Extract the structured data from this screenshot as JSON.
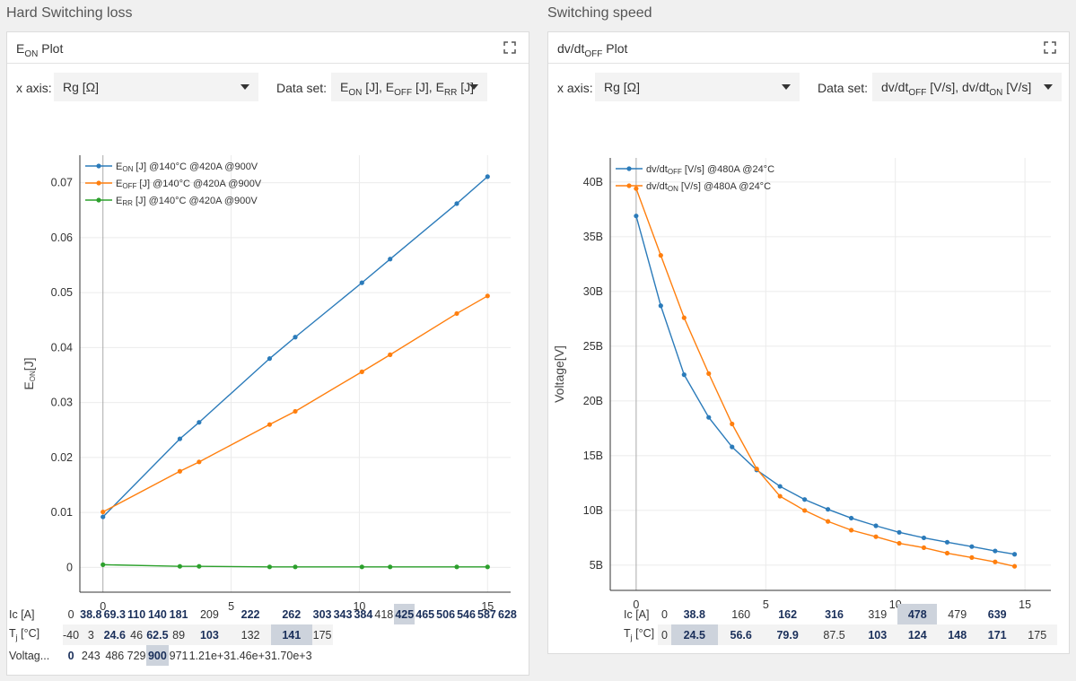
{
  "left": {
    "section_title": "Hard Switching loss",
    "panel_title": "E",
    "panel_title_sub": "ON",
    "panel_title_rest": " Plot",
    "x_axis_label": "x axis:",
    "x_axis_value": "Rg [Ω]",
    "dataset_label": "Data set:",
    "dataset_value": "EON [J], EOFF [J], ERR [J]",
    "table": {
      "rows": [
        {
          "label": "Ic [A]",
          "values": [
            "0",
            "38.8",
            "69.3",
            "110",
            "140",
            "181",
            "209",
            "222",
            "262",
            "303",
            "343",
            "384",
            "418",
            "425",
            "465",
            "506",
            "546",
            "587",
            "628"
          ]
        },
        {
          "label": "Tj [°C]",
          "values": [
            "-40",
            "3",
            "24.6",
            "46",
            "62.5",
            "89",
            "103",
            "132",
            "141",
            "175"
          ]
        },
        {
          "label": "Voltag...",
          "values": [
            "0",
            "243",
            "486",
            "729",
            "900",
            "971",
            "1.21e+3",
            "1.46e+3",
            "1.70e+3"
          ]
        }
      ]
    }
  },
  "right": {
    "section_title": "Switching speed",
    "panel_title": "dv/dt",
    "panel_title_sub": "OFF",
    "panel_title_rest": " Plot",
    "x_axis_label": "x axis:",
    "x_axis_value": "Rg [Ω]",
    "dataset_label": "Data set:",
    "dataset_value": "dv/dtOFF [V/s], dv/dtON [V/s]",
    "table": {
      "rows": [
        {
          "label": "Ic [A]",
          "values": [
            "0",
            "38.8",
            "160",
            "162",
            "316",
            "319",
            "478",
            "479",
            "639"
          ]
        },
        {
          "label": "Tj [°C]",
          "values": [
            "0",
            "24.5",
            "56.6",
            "79.9",
            "87.5",
            "103",
            "124",
            "148",
            "171",
            "175"
          ]
        }
      ]
    }
  },
  "colors": {
    "blue": "#2b7bba",
    "orange": "#ff7f0e",
    "green": "#2ca02c"
  },
  "chart_data": [
    {
      "type": "line",
      "title": "",
      "xlabel": "Rg [Ω]",
      "ylabel": "EON[J]",
      "xlim": [
        -0.9,
        15.9
      ],
      "ylim": [
        -0.0045,
        0.075
      ],
      "xticks": [
        0,
        5,
        10,
        15
      ],
      "yticks": [
        0,
        0.01,
        0.02,
        0.03,
        0.04,
        0.05,
        0.06,
        0.07
      ],
      "ytick_labels": [
        "0",
        "0.01",
        "0.02",
        "0.03",
        "0.04",
        "0.05",
        "0.06",
        "0.07"
      ],
      "legend_position": "top-left",
      "series": [
        {
          "name": "EON [J]  @140°C @420A @900V",
          "color": "#2b7bba",
          "x": [
            0,
            3,
            3.75,
            6.5,
            7.5,
            10.1,
            11.2,
            13.8,
            15
          ],
          "y": [
            0.0092,
            0.0234,
            0.0264,
            0.038,
            0.0419,
            0.0518,
            0.0561,
            0.0662,
            0.0711
          ]
        },
        {
          "name": "EOFF [J]  @140°C @420A @900V",
          "color": "#ff7f0e",
          "x": [
            0,
            3,
            3.75,
            6.5,
            7.5,
            10.1,
            11.2,
            13.8,
            15
          ],
          "y": [
            0.0101,
            0.0175,
            0.0192,
            0.026,
            0.0284,
            0.0356,
            0.0387,
            0.0462,
            0.0494
          ]
        },
        {
          "name": "ERR [J]  @140°C @420A @900V",
          "color": "#2ca02c",
          "x": [
            0,
            3,
            3.75,
            6.5,
            7.5,
            10.1,
            11.2,
            13.8,
            15
          ],
          "y": [
            0.0005,
            0.0002,
            0.0002,
            0.0001,
            0.0001,
            0.0001,
            0.0001,
            0.0001,
            0.0001
          ]
        }
      ]
    },
    {
      "type": "line",
      "title": "",
      "xlabel": "Rg [Ω]",
      "ylabel": "Voltage[V]",
      "xlim": [
        -1,
        16
      ],
      "ylim": [
        2.7,
        42.2
      ],
      "xticks": [
        0,
        5,
        10,
        15
      ],
      "yticks": [
        5,
        10,
        15,
        20,
        25,
        30,
        35,
        40
      ],
      "ytick_labels": [
        "5B",
        "10B",
        "15B",
        "20B",
        "25B",
        "30B",
        "35B",
        "40B"
      ],
      "legend_position": "top-left",
      "series": [
        {
          "name": "dv/dtOFF [V/s]  @480A @24°C",
          "color": "#2b7bba",
          "x": [
            0,
            0.95,
            1.85,
            2.8,
            3.7,
            4.65,
            5.55,
            6.5,
            7.4,
            8.3,
            9.25,
            10.15,
            11.1,
            12.0,
            12.95,
            13.85,
            14.6
          ],
          "y": [
            36.9,
            28.7,
            22.4,
            18.5,
            15.8,
            13.7,
            12.2,
            11.0,
            10.1,
            9.3,
            8.6,
            8.0,
            7.5,
            7.1,
            6.7,
            6.3,
            6.0
          ]
        },
        {
          "name": "dv/dtON [V/s]  @480A @24°C",
          "color": "#ff7f0e",
          "x": [
            0,
            0.95,
            1.85,
            2.8,
            3.7,
            4.65,
            5.55,
            6.5,
            7.4,
            8.3,
            9.25,
            10.15,
            11.1,
            12.0,
            12.95,
            13.85,
            14.6
          ],
          "y": [
            39.4,
            33.3,
            27.6,
            22.5,
            17.9,
            13.8,
            11.3,
            10.0,
            9.0,
            8.2,
            7.6,
            7.0,
            6.6,
            6.1,
            5.7,
            5.3,
            4.9
          ]
        }
      ]
    }
  ]
}
